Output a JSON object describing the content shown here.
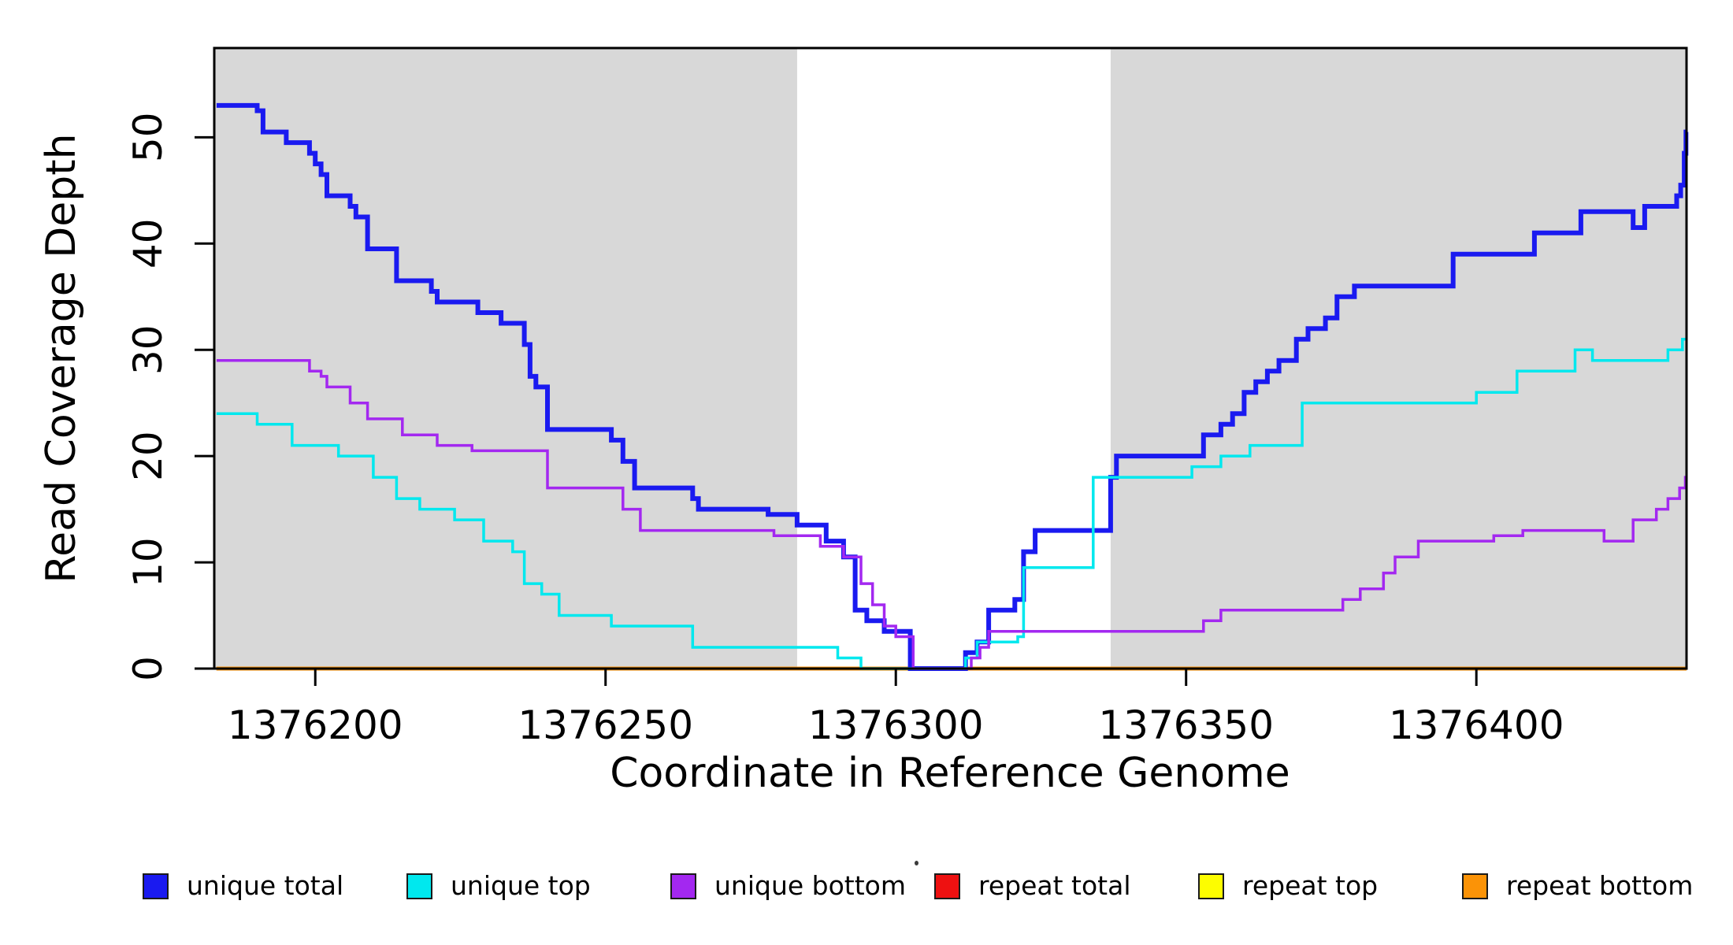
{
  "chart_data": {
    "type": "line",
    "subtype": "step-after",
    "title": "",
    "xlabel": "Coordinate in Reference Genome",
    "ylabel": "Read Coverage Depth",
    "xlim": [
      1376182.6,
      1376436.2
    ],
    "ylim": [
      0,
      58.4
    ],
    "x_ticks": [
      1376200,
      1376250,
      1376300,
      1376350,
      1376400
    ],
    "y_ticks": [
      0,
      10,
      20,
      30,
      40,
      50
    ],
    "grid": false,
    "legend_position": "bottom",
    "page_background": "#ffffff",
    "plot_background": "#ffffff",
    "box_color": "#000000",
    "shaded_regions": [
      {
        "from": 1376182.6,
        "to": 1376283,
        "color": "#d8d8d8"
      },
      {
        "from": 1376337,
        "to": 1376436.2,
        "color": "#d8d8d8"
      }
    ],
    "draw_order": [
      "repeat total",
      "repeat top",
      "repeat bottom",
      "unique total",
      "unique top",
      "unique bottom"
    ],
    "series": [
      {
        "name": "unique total",
        "color": "#1a1af0",
        "line_width": 6,
        "points": [
          [
            1376183,
            53
          ],
          [
            1376190,
            52.5
          ],
          [
            1376191,
            50.5
          ],
          [
            1376195,
            49.5
          ],
          [
            1376199,
            48.5
          ],
          [
            1376200,
            47.5
          ],
          [
            1376201,
            46.5
          ],
          [
            1376202,
            44.5
          ],
          [
            1376206,
            43.5
          ],
          [
            1376207,
            42.5
          ],
          [
            1376209,
            39.5
          ],
          [
            1376214,
            36.5
          ],
          [
            1376220,
            35.5
          ],
          [
            1376221,
            34.5
          ],
          [
            1376228,
            33.5
          ],
          [
            1376232,
            32.5
          ],
          [
            1376236,
            30.5
          ],
          [
            1376237,
            27.5
          ],
          [
            1376238,
            26.5
          ],
          [
            1376240,
            22.5
          ],
          [
            1376251,
            21.5
          ],
          [
            1376253,
            19.5
          ],
          [
            1376255,
            17
          ],
          [
            1376265,
            16
          ],
          [
            1376266,
            15
          ],
          [
            1376278,
            14.5
          ],
          [
            1376283,
            13.5
          ],
          [
            1376288,
            12
          ],
          [
            1376291,
            10.5
          ],
          [
            1376293,
            5.5
          ],
          [
            1376295,
            4.5
          ],
          [
            1376298,
            3.5
          ],
          [
            1376302.5,
            0
          ],
          [
            1376312,
            1.5
          ],
          [
            1376314,
            2.5
          ],
          [
            1376316,
            5.5
          ],
          [
            1376320.5,
            6.5
          ],
          [
            1376322,
            11
          ],
          [
            1376324,
            13
          ],
          [
            1376337,
            18
          ],
          [
            1376338,
            20
          ],
          [
            1376353,
            22
          ],
          [
            1376356,
            23
          ],
          [
            1376358,
            24
          ],
          [
            1376360,
            26
          ],
          [
            1376362,
            27
          ],
          [
            1376364,
            28
          ],
          [
            1376366,
            29
          ],
          [
            1376369,
            31
          ],
          [
            1376371,
            32
          ],
          [
            1376374,
            33
          ],
          [
            1376376,
            35
          ],
          [
            1376379,
            36
          ],
          [
            1376396,
            39
          ],
          [
            1376410,
            41
          ],
          [
            1376418,
            43
          ],
          [
            1376427,
            41.5
          ],
          [
            1376429,
            43.5
          ],
          [
            1376434.5,
            44.5
          ],
          [
            1376435.2,
            45.5
          ],
          [
            1376435.8,
            48.5
          ],
          [
            1376436.1,
            50.5
          ]
        ]
      },
      {
        "name": "unique top",
        "color": "#00e8ee",
        "line_width": 3.5,
        "points": [
          [
            1376183,
            24
          ],
          [
            1376190,
            23
          ],
          [
            1376196,
            21
          ],
          [
            1376204,
            20
          ],
          [
            1376210,
            18
          ],
          [
            1376214,
            16
          ],
          [
            1376218,
            15
          ],
          [
            1376224,
            14
          ],
          [
            1376229,
            12
          ],
          [
            1376234,
            11
          ],
          [
            1376236,
            8
          ],
          [
            1376239,
            7
          ],
          [
            1376242,
            5
          ],
          [
            1376251,
            4
          ],
          [
            1376265,
            2
          ],
          [
            1376290,
            1
          ],
          [
            1376294,
            0
          ],
          [
            1376312,
            1
          ],
          [
            1376314,
            2.5
          ],
          [
            1376321,
            3
          ],
          [
            1376322,
            9.5
          ],
          [
            1376334,
            18
          ],
          [
            1376351,
            19
          ],
          [
            1376356,
            20
          ],
          [
            1376361,
            21
          ],
          [
            1376370,
            25
          ],
          [
            1376400,
            26
          ],
          [
            1376407,
            28
          ],
          [
            1376417,
            30
          ],
          [
            1376420,
            29
          ],
          [
            1376433,
            30
          ],
          [
            1376435.5,
            31
          ]
        ]
      },
      {
        "name": "unique bottom",
        "color": "#a328f0",
        "line_width": 3.5,
        "points": [
          [
            1376183,
            29
          ],
          [
            1376199,
            28
          ],
          [
            1376201,
            27.5
          ],
          [
            1376202,
            26.5
          ],
          [
            1376206,
            25
          ],
          [
            1376209,
            23.5
          ],
          [
            1376215,
            22
          ],
          [
            1376221,
            21
          ],
          [
            1376227,
            20.5
          ],
          [
            1376240,
            17
          ],
          [
            1376253,
            15
          ],
          [
            1376256,
            13
          ],
          [
            1376279,
            12.5
          ],
          [
            1376287,
            11.5
          ],
          [
            1376291,
            10.5
          ],
          [
            1376294,
            8
          ],
          [
            1376296,
            6
          ],
          [
            1376298,
            4
          ],
          [
            1376300,
            3
          ],
          [
            1376303,
            0
          ],
          [
            1376313,
            1
          ],
          [
            1376314.5,
            2
          ],
          [
            1376316,
            3.5
          ],
          [
            1376353,
            4.5
          ],
          [
            1376356,
            5.5
          ],
          [
            1376377,
            6.5
          ],
          [
            1376380,
            7.5
          ],
          [
            1376384,
            9
          ],
          [
            1376386,
            10.5
          ],
          [
            1376390,
            12
          ],
          [
            1376403,
            12.5
          ],
          [
            1376408,
            13
          ],
          [
            1376422,
            12
          ],
          [
            1376427,
            14
          ],
          [
            1376431,
            15
          ],
          [
            1376433,
            16
          ],
          [
            1376435,
            17
          ],
          [
            1376436,
            18
          ]
        ]
      },
      {
        "name": "repeat total",
        "color": "#ee1111",
        "line_width": 5,
        "points": [
          [
            1376183,
            0
          ]
        ]
      },
      {
        "name": "repeat top",
        "color": "#fdfd00",
        "line_width": 5,
        "points": [
          [
            1376183,
            0
          ]
        ]
      },
      {
        "name": "repeat bottom",
        "color": "#fb9307",
        "line_width": 5,
        "points": [
          [
            1376183,
            0
          ]
        ]
      }
    ],
    "legend_items": [
      {
        "label": "unique total",
        "color": "#1a1af0"
      },
      {
        "label": "unique top",
        "color": "#00e8ee"
      },
      {
        "label": "unique bottom",
        "color": "#a328f0"
      },
      {
        "label": "repeat total",
        "color": "#ee1111"
      },
      {
        "label": "repeat top",
        "color": "#fdfd00"
      },
      {
        "label": "repeat bottom",
        "color": "#fb9307"
      }
    ],
    "stray_dot": {
      "present": true,
      "x": 1163,
      "y": 1096
    }
  }
}
